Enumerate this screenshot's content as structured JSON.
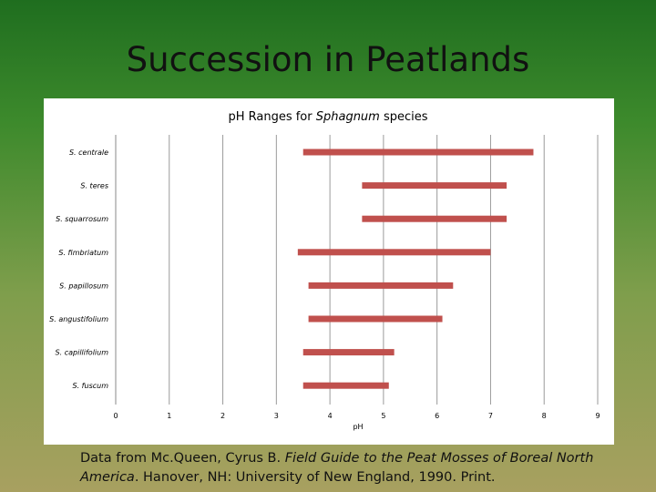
{
  "slide": {
    "title": "Succession in Peatlands"
  },
  "citation": {
    "prefix": "Data from Mc.Queen, Cyrus B. ",
    "book_title": "Field Guide to the Peat Mosses of Boreal North America",
    "suffix": ". Hanover, NH: University of New England, 1990. Print."
  },
  "chart_data": {
    "type": "bar",
    "orientation": "horizontal-range",
    "title_prefix": "pH Ranges for ",
    "title_italic": "Sphagnum",
    "title_suffix": " species",
    "xlabel": "pH",
    "ylabel": "",
    "xlim": [
      0,
      9
    ],
    "x_ticks": [
      "0",
      "1",
      "2",
      "3",
      "4",
      "5",
      "6",
      "7",
      "8",
      "9"
    ],
    "grid": "vertical",
    "bar_color": "#c0504d",
    "categories": [
      "S. centrale",
      "S. teres",
      "S. squarrosum",
      "S. fimbriatum",
      "S. papillosum",
      "S. angustifolium",
      "S. capillifolium",
      "S. fuscum"
    ],
    "ranges": [
      [
        3.5,
        7.8
      ],
      [
        4.6,
        7.3
      ],
      [
        4.6,
        7.3
      ],
      [
        3.4,
        7.0
      ],
      [
        3.6,
        6.3
      ],
      [
        3.6,
        6.1
      ],
      [
        3.5,
        5.2
      ],
      [
        3.5,
        5.1
      ]
    ]
  }
}
